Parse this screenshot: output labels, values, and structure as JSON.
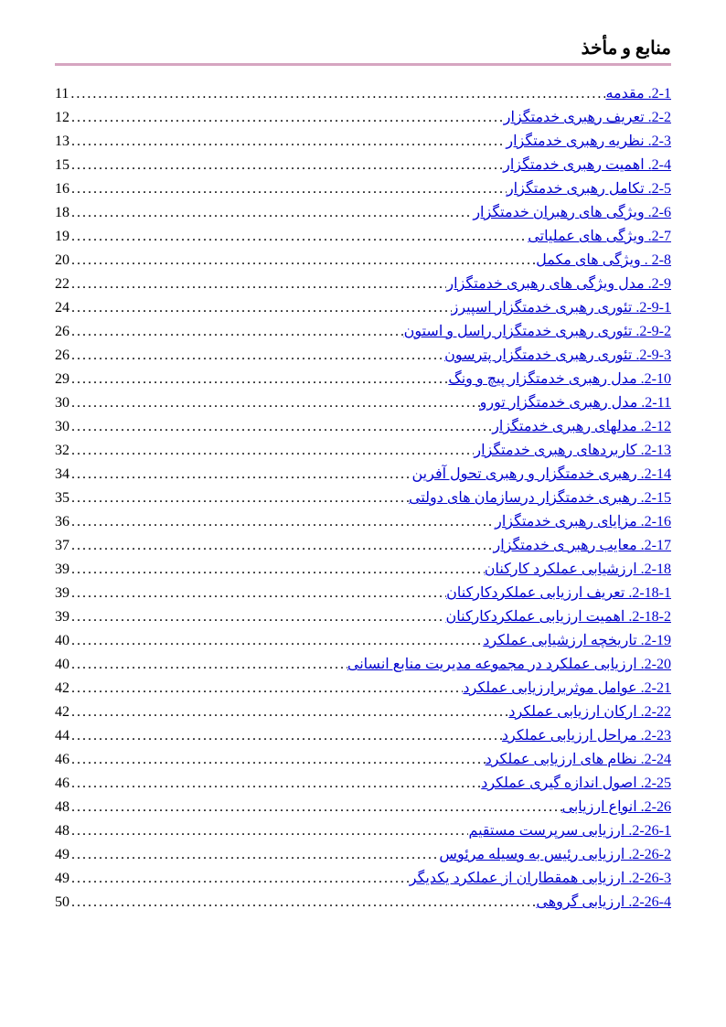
{
  "header": {
    "title": "منابع و مأخذ"
  },
  "divider_color": "#d6a5c0",
  "link_color": "#0000cc",
  "text_color": "#000000",
  "font_size": 16,
  "line_height": 26,
  "toc": {
    "entries": [
      {
        "title": "2-1. مقدمه",
        "page": "11"
      },
      {
        "title": "2-2. تعریف رهبری خدمتگزار",
        "page": "12"
      },
      {
        "title": "2-3. نظریه رهبری خدمتگزار",
        "page": "13"
      },
      {
        "title": "2-4. اهمیت رهبری خدمتگزار",
        "page": "15"
      },
      {
        "title": "2-5. تکامل رهبری خدمتگزار",
        "page": "16"
      },
      {
        "title": "2-6. ویژگی های رهبران خدمتگزار",
        "page": "18"
      },
      {
        "title": "2-7. ویژگی های عملیاتی",
        "page": "19"
      },
      {
        "title": "2-8 . ویژگی های مکمل",
        "page": "20"
      },
      {
        "title": "2-9. مدل ویژگی های رهبری خدمتگزار",
        "page": "22"
      },
      {
        "title": "2-9-1. تئوری رهبری خدمتگزار اسپیرز",
        "page": "24"
      },
      {
        "title": "2-9-2. تئوری رهبری خدمتگزار راسل و استون",
        "page": "26"
      },
      {
        "title": "2-9-3. تئوری رهبری خدمتگزار پترسون",
        "page": "26"
      },
      {
        "title": "2-10. مدل رهبری خدمتگزار پیچ و ونگ",
        "page": "29"
      },
      {
        "title": "2-11. مدل رهبری خدمتگزار تورو",
        "page": "30"
      },
      {
        "title": "2-12. مدلهای رهبری خدمتگزار",
        "page": "30"
      },
      {
        "title": "2-13. کاربردهای رهبری خدمتگزار",
        "page": "32"
      },
      {
        "title": "2-14. رهبری خدمتگزار و رهبری تحول آفرین",
        "page": "34"
      },
      {
        "title": "2-15. رهبری خدمتگزار درسازمان های دولتی",
        "page": "35"
      },
      {
        "title": "2-16. مزایای رهبری خدمتگزار",
        "page": "36"
      },
      {
        "title": "2-17. معایب رهبر ی خدمتگزار",
        "page": "37"
      },
      {
        "title": "2-18. ارزشیابی عملکرد کارکنان",
        "page": "39"
      },
      {
        "title": "2-18-1. تعریف ارزیابی عملکردکارکنان",
        "page": "39"
      },
      {
        "title": "2-18-2. اهمیت ارزیابی عملکردکارکنان",
        "page": "39"
      },
      {
        "title": "2-19. تاریخچه ارزشیابی عملکرد",
        "page": "40"
      },
      {
        "title": "2-20. ارزیابی عملکرد در مجموعه مدیریت منابع انسانی",
        "page": "40"
      },
      {
        "title": "2-21. عوامل موثربرارزیابی عملکرد",
        "page": "42"
      },
      {
        "title": "2-22. ارکان ارزیابی عملکرد",
        "page": "42"
      },
      {
        "title": "2-23. مراحل ارزیابی عملکرد",
        "page": "44"
      },
      {
        "title": "2-24. نظام های ارزیابی عملکرد",
        "page": "46"
      },
      {
        "title": "2-25. اصول اندازه گیری عملکرد",
        "page": "46"
      },
      {
        "title": "2-26. انواع ارزیابی",
        "page": "48"
      },
      {
        "title": "2-26-1. ارزیابی سرپرست مستقیم",
        "page": "48"
      },
      {
        "title": "2-26-2. ارزیابی رئیس به وسیله مرئوس",
        "page": "49"
      },
      {
        "title": "2-26-3. ارزیابی همقطاران از عملکرد یکدیگر",
        "page": "49"
      },
      {
        "title": "2-26-4. ارزیابی گروهی",
        "page": "50"
      }
    ]
  }
}
